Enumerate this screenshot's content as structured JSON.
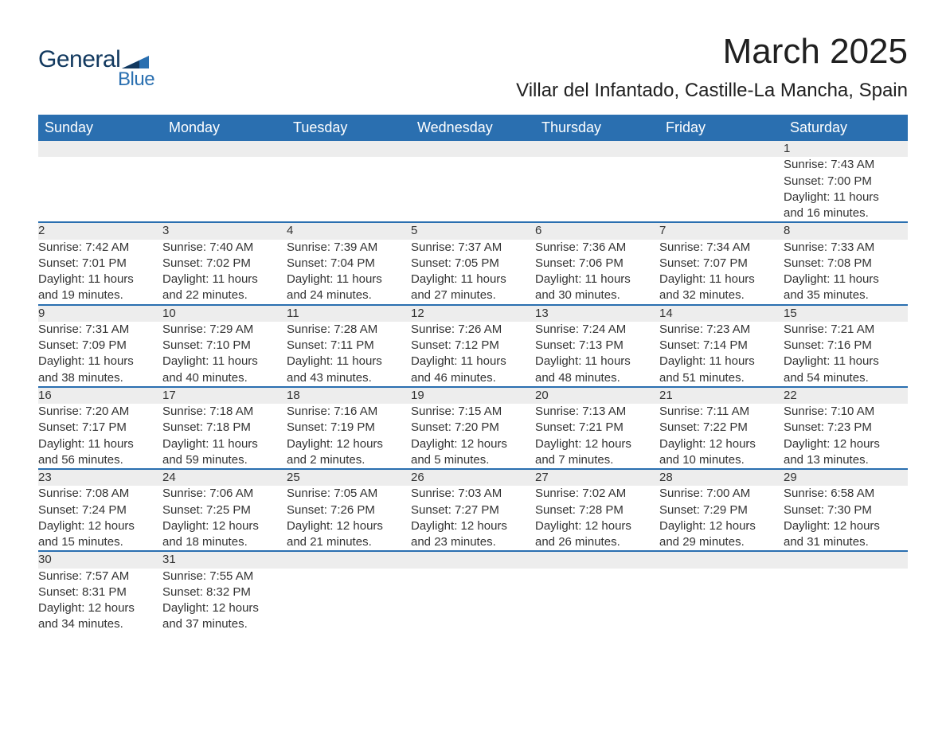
{
  "brand": {
    "line1": "General",
    "line2": "Blue",
    "accent_color": "#2a6fb0",
    "dark_color": "#12395f"
  },
  "header": {
    "title": "March 2025",
    "location": "Villar del Infantado, Castille-La Mancha, Spain"
  },
  "calendar": {
    "columns": [
      "Sunday",
      "Monday",
      "Tuesday",
      "Wednesday",
      "Thursday",
      "Friday",
      "Saturday"
    ],
    "header_bg": "#2a6fb0",
    "header_fg": "#ffffff",
    "stripe_bg": "#ededed",
    "divider_color": "#2a6fb0",
    "text_color": "#333333",
    "font_size_header": 18,
    "font_size_daynum": 17,
    "font_size_body": 15,
    "weeks": [
      [
        null,
        null,
        null,
        null,
        null,
        null,
        {
          "n": "1",
          "sunrise": "Sunrise: 7:43 AM",
          "sunset": "Sunset: 7:00 PM",
          "dl1": "Daylight: 11 hours",
          "dl2": "and 16 minutes."
        }
      ],
      [
        {
          "n": "2",
          "sunrise": "Sunrise: 7:42 AM",
          "sunset": "Sunset: 7:01 PM",
          "dl1": "Daylight: 11 hours",
          "dl2": "and 19 minutes."
        },
        {
          "n": "3",
          "sunrise": "Sunrise: 7:40 AM",
          "sunset": "Sunset: 7:02 PM",
          "dl1": "Daylight: 11 hours",
          "dl2": "and 22 minutes."
        },
        {
          "n": "4",
          "sunrise": "Sunrise: 7:39 AM",
          "sunset": "Sunset: 7:04 PM",
          "dl1": "Daylight: 11 hours",
          "dl2": "and 24 minutes."
        },
        {
          "n": "5",
          "sunrise": "Sunrise: 7:37 AM",
          "sunset": "Sunset: 7:05 PM",
          "dl1": "Daylight: 11 hours",
          "dl2": "and 27 minutes."
        },
        {
          "n": "6",
          "sunrise": "Sunrise: 7:36 AM",
          "sunset": "Sunset: 7:06 PM",
          "dl1": "Daylight: 11 hours",
          "dl2": "and 30 minutes."
        },
        {
          "n": "7",
          "sunrise": "Sunrise: 7:34 AM",
          "sunset": "Sunset: 7:07 PM",
          "dl1": "Daylight: 11 hours",
          "dl2": "and 32 minutes."
        },
        {
          "n": "8",
          "sunrise": "Sunrise: 7:33 AM",
          "sunset": "Sunset: 7:08 PM",
          "dl1": "Daylight: 11 hours",
          "dl2": "and 35 minutes."
        }
      ],
      [
        {
          "n": "9",
          "sunrise": "Sunrise: 7:31 AM",
          "sunset": "Sunset: 7:09 PM",
          "dl1": "Daylight: 11 hours",
          "dl2": "and 38 minutes."
        },
        {
          "n": "10",
          "sunrise": "Sunrise: 7:29 AM",
          "sunset": "Sunset: 7:10 PM",
          "dl1": "Daylight: 11 hours",
          "dl2": "and 40 minutes."
        },
        {
          "n": "11",
          "sunrise": "Sunrise: 7:28 AM",
          "sunset": "Sunset: 7:11 PM",
          "dl1": "Daylight: 11 hours",
          "dl2": "and 43 minutes."
        },
        {
          "n": "12",
          "sunrise": "Sunrise: 7:26 AM",
          "sunset": "Sunset: 7:12 PM",
          "dl1": "Daylight: 11 hours",
          "dl2": "and 46 minutes."
        },
        {
          "n": "13",
          "sunrise": "Sunrise: 7:24 AM",
          "sunset": "Sunset: 7:13 PM",
          "dl1": "Daylight: 11 hours",
          "dl2": "and 48 minutes."
        },
        {
          "n": "14",
          "sunrise": "Sunrise: 7:23 AM",
          "sunset": "Sunset: 7:14 PM",
          "dl1": "Daylight: 11 hours",
          "dl2": "and 51 minutes."
        },
        {
          "n": "15",
          "sunrise": "Sunrise: 7:21 AM",
          "sunset": "Sunset: 7:16 PM",
          "dl1": "Daylight: 11 hours",
          "dl2": "and 54 minutes."
        }
      ],
      [
        {
          "n": "16",
          "sunrise": "Sunrise: 7:20 AM",
          "sunset": "Sunset: 7:17 PM",
          "dl1": "Daylight: 11 hours",
          "dl2": "and 56 minutes."
        },
        {
          "n": "17",
          "sunrise": "Sunrise: 7:18 AM",
          "sunset": "Sunset: 7:18 PM",
          "dl1": "Daylight: 11 hours",
          "dl2": "and 59 minutes."
        },
        {
          "n": "18",
          "sunrise": "Sunrise: 7:16 AM",
          "sunset": "Sunset: 7:19 PM",
          "dl1": "Daylight: 12 hours",
          "dl2": "and 2 minutes."
        },
        {
          "n": "19",
          "sunrise": "Sunrise: 7:15 AM",
          "sunset": "Sunset: 7:20 PM",
          "dl1": "Daylight: 12 hours",
          "dl2": "and 5 minutes."
        },
        {
          "n": "20",
          "sunrise": "Sunrise: 7:13 AM",
          "sunset": "Sunset: 7:21 PM",
          "dl1": "Daylight: 12 hours",
          "dl2": "and 7 minutes."
        },
        {
          "n": "21",
          "sunrise": "Sunrise: 7:11 AM",
          "sunset": "Sunset: 7:22 PM",
          "dl1": "Daylight: 12 hours",
          "dl2": "and 10 minutes."
        },
        {
          "n": "22",
          "sunrise": "Sunrise: 7:10 AM",
          "sunset": "Sunset: 7:23 PM",
          "dl1": "Daylight: 12 hours",
          "dl2": "and 13 minutes."
        }
      ],
      [
        {
          "n": "23",
          "sunrise": "Sunrise: 7:08 AM",
          "sunset": "Sunset: 7:24 PM",
          "dl1": "Daylight: 12 hours",
          "dl2": "and 15 minutes."
        },
        {
          "n": "24",
          "sunrise": "Sunrise: 7:06 AM",
          "sunset": "Sunset: 7:25 PM",
          "dl1": "Daylight: 12 hours",
          "dl2": "and 18 minutes."
        },
        {
          "n": "25",
          "sunrise": "Sunrise: 7:05 AM",
          "sunset": "Sunset: 7:26 PM",
          "dl1": "Daylight: 12 hours",
          "dl2": "and 21 minutes."
        },
        {
          "n": "26",
          "sunrise": "Sunrise: 7:03 AM",
          "sunset": "Sunset: 7:27 PM",
          "dl1": "Daylight: 12 hours",
          "dl2": "and 23 minutes."
        },
        {
          "n": "27",
          "sunrise": "Sunrise: 7:02 AM",
          "sunset": "Sunset: 7:28 PM",
          "dl1": "Daylight: 12 hours",
          "dl2": "and 26 minutes."
        },
        {
          "n": "28",
          "sunrise": "Sunrise: 7:00 AM",
          "sunset": "Sunset: 7:29 PM",
          "dl1": "Daylight: 12 hours",
          "dl2": "and 29 minutes."
        },
        {
          "n": "29",
          "sunrise": "Sunrise: 6:58 AM",
          "sunset": "Sunset: 7:30 PM",
          "dl1": "Daylight: 12 hours",
          "dl2": "and 31 minutes."
        }
      ],
      [
        {
          "n": "30",
          "sunrise": "Sunrise: 7:57 AM",
          "sunset": "Sunset: 8:31 PM",
          "dl1": "Daylight: 12 hours",
          "dl2": "and 34 minutes."
        },
        {
          "n": "31",
          "sunrise": "Sunrise: 7:55 AM",
          "sunset": "Sunset: 8:32 PM",
          "dl1": "Daylight: 12 hours",
          "dl2": "and 37 minutes."
        },
        null,
        null,
        null,
        null,
        null
      ]
    ]
  }
}
